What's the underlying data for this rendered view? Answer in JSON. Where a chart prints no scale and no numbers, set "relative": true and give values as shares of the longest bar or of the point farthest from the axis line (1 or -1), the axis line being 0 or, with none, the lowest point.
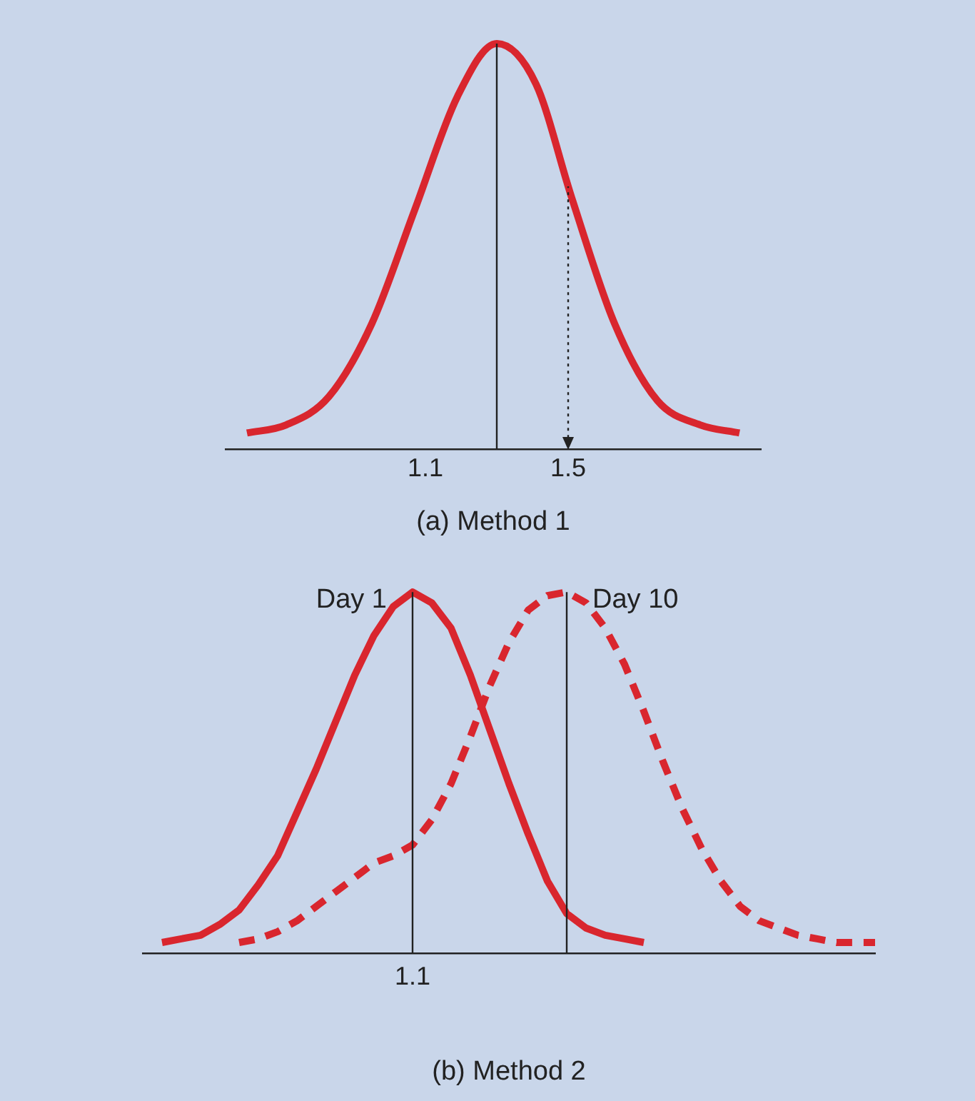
{
  "chart_data": [
    {
      "type": "line",
      "relative": true,
      "xlabel": "(a) Method 1",
      "xlim": [
        0.54,
        2.04
      ],
      "xticks": [
        1.1,
        1.5
      ],
      "tick_labels": "x",
      "legend": false,
      "grid": false,
      "ref_lines": [
        {
          "axis": "x",
          "value": 1.3,
          "color": "#222222",
          "line_style": "solid"
        },
        {
          "axis": "x",
          "value": 1.5,
          "color": "#222222",
          "line_style": "dotted"
        }
      ],
      "series": [
        {
          "color": "#d9262e",
          "line_style": "solid",
          "x": [
            0.6,
            0.71,
            0.83,
            0.95,
            1.07,
            1.19,
            1.3,
            1.41,
            1.51,
            1.63,
            1.75,
            1.87,
            1.98
          ],
          "values": [
            0.04,
            0.06,
            0.13,
            0.31,
            0.59,
            0.87,
            1.0,
            0.9,
            0.62,
            0.31,
            0.12,
            0.06,
            0.04
          ]
        }
      ]
    },
    {
      "type": "line",
      "relative": true,
      "xlabel": "(b) Method 2",
      "tick_labels": "x",
      "legend": false,
      "grid": false,
      "categories": [
        null,
        null,
        null,
        null,
        null,
        null,
        null,
        null,
        null,
        null,
        null,
        null,
        null,
        null,
        null,
        null,
        null,
        null,
        null,
        null,
        null,
        null,
        null,
        null,
        null,
        null,
        null,
        null,
        null,
        null,
        null,
        null,
        null,
        null,
        null,
        null,
        null,
        null,
        null
      ],
      "annotations": [
        "1.1"
      ],
      "series": [
        {
          "name": "Day 1",
          "color": "#d9262e",
          "line_style": "solid",
          "values": [
            null,
            0.03,
            0.04,
            0.05,
            0.08,
            0.12,
            0.19,
            0.27,
            0.39,
            0.51,
            0.64,
            0.77,
            0.88,
            0.96,
            1.0,
            0.97,
            0.9,
            0.77,
            0.62,
            0.47,
            0.33,
            0.2,
            0.11,
            0.07,
            0.05,
            0.04,
            0.03,
            null,
            null,
            null,
            null,
            null,
            null,
            null,
            null,
            null,
            null,
            null,
            null
          ]
        },
        {
          "name": "Day 10",
          "color": "#d9262e",
          "line_style": "dashed",
          "values": [
            null,
            null,
            null,
            null,
            null,
            0.03,
            0.04,
            0.06,
            0.09,
            0.13,
            0.17,
            0.21,
            0.25,
            0.27,
            0.3,
            0.37,
            0.47,
            0.6,
            0.74,
            0.86,
            0.95,
            0.99,
            1.0,
            0.97,
            0.9,
            0.8,
            0.67,
            0.53,
            0.4,
            0.29,
            0.2,
            0.13,
            0.09,
            0.07,
            0.05,
            0.04,
            0.03,
            0.03,
            0.03
          ]
        }
      ]
    }
  ]
}
